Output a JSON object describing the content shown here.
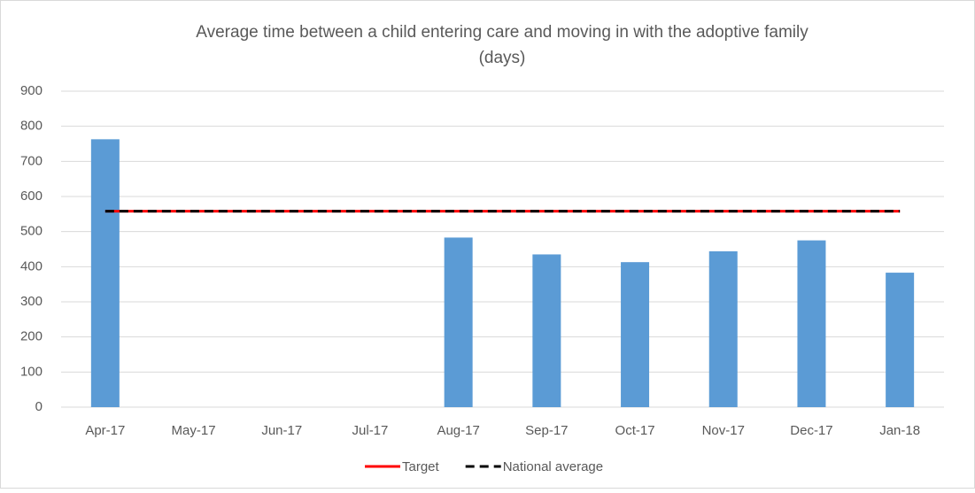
{
  "chart_data": {
    "type": "bar",
    "title": [
      "Average time between a child entering care and moving in with the adoptive family",
      "(days)"
    ],
    "categories": [
      "Apr-17",
      "May-17",
      "Jun-17",
      "Jul-17",
      "Aug-17",
      "Sep-17",
      "Oct-17",
      "Nov-17",
      "Dec-17",
      "Jan-18"
    ],
    "series": [
      {
        "name": null,
        "type": "bar",
        "color": "#5b9bd5",
        "values": [
          763,
          null,
          null,
          null,
          483,
          435,
          413,
          444,
          475,
          383
        ]
      },
      {
        "name": "Target",
        "type": "line",
        "color": "#ff0000",
        "dash": false,
        "values": [
          558,
          558,
          558,
          558,
          558,
          558,
          558,
          558,
          558,
          558
        ]
      },
      {
        "name": "National average",
        "type": "line",
        "color": "#000000",
        "dash": true,
        "values": [
          558,
          558,
          558,
          558,
          558,
          558,
          558,
          558,
          558,
          558
        ]
      }
    ],
    "ylim": [
      0,
      900
    ],
    "yticks": [
      0,
      100,
      200,
      300,
      400,
      500,
      600,
      700,
      800,
      900
    ],
    "grid": true,
    "legend": "bottom"
  }
}
